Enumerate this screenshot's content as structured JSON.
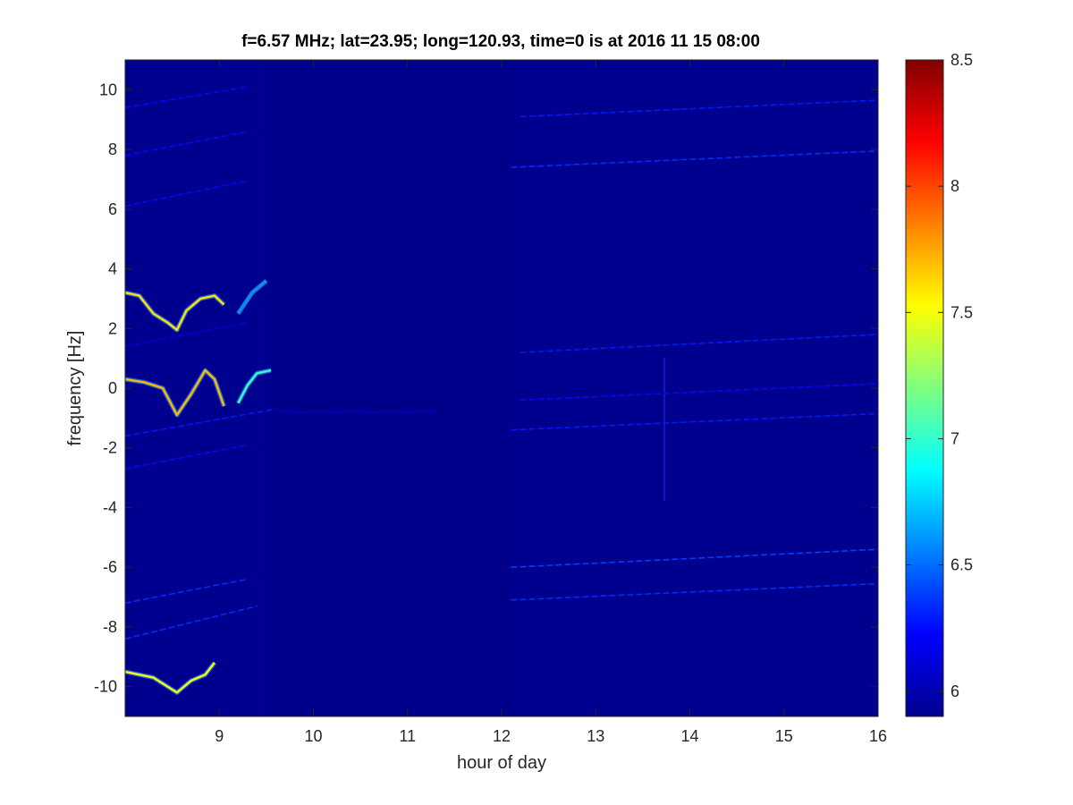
{
  "chart_data": {
    "type": "heatmap",
    "title": "f=6.57 MHz;  lat=23.95; long=120.93, time=0 is at 2016 11 15 08:00",
    "xlabel": "hour of day",
    "ylabel": "frequency [Hz]",
    "xlim": [
      8,
      16
    ],
    "ylim": [
      -11,
      11
    ],
    "xticks": [
      9,
      10,
      11,
      12,
      13,
      14,
      15,
      16
    ],
    "yticks": [
      -10,
      -8,
      -6,
      -4,
      -2,
      0,
      2,
      4,
      6,
      8,
      10
    ],
    "colorbar": {
      "min": 5.9,
      "max": 8.5,
      "ticks": [
        6,
        6.5,
        7,
        7.5,
        8,
        8.5
      ],
      "colormap": "jet",
      "background_value": 5.95
    },
    "grid": false,
    "background_color": "#00008f",
    "traces": [
      {
        "x": [
          8.0,
          9.3
        ],
        "y": [
          9.4,
          10.1
        ],
        "intensity": 6.25
      },
      {
        "x": [
          8.0,
          9.3
        ],
        "y": [
          7.8,
          8.6
        ],
        "intensity": 6.25
      },
      {
        "x": [
          8.0,
          9.3
        ],
        "y": [
          6.1,
          6.95
        ],
        "intensity": 6.25
      },
      {
        "x": [
          8.0,
          9.3
        ],
        "y": [
          1.4,
          2.2
        ],
        "intensity": 6.15
      },
      {
        "x": [
          8.0,
          9.6
        ],
        "y": [
          -1.6,
          -0.7
        ],
        "intensity": 6.3
      },
      {
        "x": [
          8.0,
          9.3
        ],
        "y": [
          -2.7,
          -1.9
        ],
        "intensity": 6.25
      },
      {
        "x": [
          8.0,
          9.3
        ],
        "y": [
          -7.2,
          -6.4
        ],
        "intensity": 6.35
      },
      {
        "x": [
          8.0,
          9.4
        ],
        "y": [
          -8.4,
          -7.3
        ],
        "intensity": 6.35
      },
      {
        "x": [
          9.6,
          11.3
        ],
        "y": [
          -0.8,
          -0.8
        ],
        "intensity": 6.1
      },
      {
        "x": [
          12.2,
          16.0
        ],
        "y": [
          9.1,
          9.65
        ],
        "intensity": 6.3
      },
      {
        "x": [
          12.1,
          16.0
        ],
        "y": [
          7.4,
          7.95
        ],
        "intensity": 6.35
      },
      {
        "x": [
          12.2,
          16.0
        ],
        "y": [
          1.2,
          1.8
        ],
        "intensity": 6.3
      },
      {
        "x": [
          12.1,
          16.0
        ],
        "y": [
          -1.4,
          -0.85
        ],
        "intensity": 6.3
      },
      {
        "x": [
          12.2,
          16.0
        ],
        "y": [
          -0.4,
          0.15
        ],
        "intensity": 6.25
      },
      {
        "x": [
          12.1,
          16.0
        ],
        "y": [
          -6.0,
          -5.4
        ],
        "intensity": 6.4
      },
      {
        "x": [
          12.1,
          16.0
        ],
        "y": [
          -7.1,
          -6.55
        ],
        "intensity": 6.35
      }
    ],
    "bright_traces": [
      {
        "x": [
          8.0,
          8.15,
          8.3,
          8.45,
          8.55,
          8.65,
          8.8,
          8.95,
          9.05
        ],
        "y": [
          3.2,
          3.1,
          2.5,
          2.2,
          1.95,
          2.6,
          3.0,
          3.1,
          2.8
        ],
        "intensity": 7.6
      },
      {
        "x": [
          9.2,
          9.35,
          9.5
        ],
        "y": [
          2.5,
          3.2,
          3.6
        ],
        "intensity": 6.6
      },
      {
        "x": [
          8.0,
          8.2,
          8.4,
          8.55,
          8.7,
          8.85,
          8.95,
          9.05
        ],
        "y": [
          0.3,
          0.2,
          0.0,
          -0.9,
          -0.2,
          0.6,
          0.3,
          -0.6
        ],
        "intensity": 7.7
      },
      {
        "x": [
          9.2,
          9.3,
          9.4,
          9.55
        ],
        "y": [
          -0.5,
          0.1,
          0.5,
          0.6
        ],
        "intensity": 7.0
      },
      {
        "x": [
          8.0,
          8.15,
          8.3,
          8.45,
          8.55,
          8.7,
          8.85,
          8.95
        ],
        "y": [
          -9.5,
          -9.6,
          -9.7,
          -10.0,
          -10.2,
          -9.8,
          -9.6,
          -9.2
        ],
        "intensity": 7.5
      }
    ]
  }
}
